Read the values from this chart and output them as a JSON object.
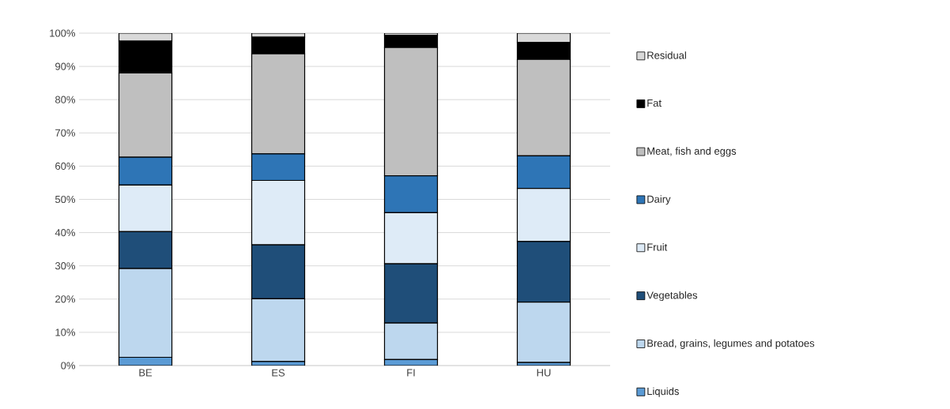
{
  "chart_data": {
    "type": "bar",
    "stacked": true,
    "categories": [
      "BE",
      "ES",
      "FI",
      "HU"
    ],
    "series": [
      {
        "name": "Liquids",
        "color": "#5b9bd5",
        "values": [
          2.5,
          1.2,
          1.8,
          0.9
        ]
      },
      {
        "name": "Bread, grains, legumes and potatoes",
        "color": "#bdd7ee",
        "values": [
          26.7,
          18.9,
          11.0,
          18.2
        ]
      },
      {
        "name": "Vegetables",
        "color": "#1f4e79",
        "values": [
          11.1,
          16.2,
          17.8,
          18.2
        ]
      },
      {
        "name": "Fruit",
        "color": "#deebf7",
        "values": [
          14.0,
          19.4,
          15.4,
          16.0
        ]
      },
      {
        "name": "Dairy",
        "color": "#2e75b6",
        "values": [
          8.4,
          8.0,
          11.1,
          9.8
        ]
      },
      {
        "name": "Meat, fish and eggs",
        "color": "#bfbfbf",
        "values": [
          25.3,
          30.1,
          38.6,
          29.0
        ]
      },
      {
        "name": "Fat",
        "color": "#000000",
        "values": [
          9.6,
          5.0,
          3.6,
          5.1
        ]
      },
      {
        "name": "Residual",
        "color": "#d9d9d9",
        "values": [
          2.4,
          1.2,
          0.7,
          2.8
        ]
      }
    ],
    "ylim": [
      0,
      100
    ],
    "yticks": [
      {
        "value": 0,
        "label": "0%"
      },
      {
        "value": 10,
        "label": "10%"
      },
      {
        "value": 20,
        "label": "20%"
      },
      {
        "value": 30,
        "label": "30%"
      },
      {
        "value": 40,
        "label": "40%"
      },
      {
        "value": 50,
        "label": "50%"
      },
      {
        "value": 60,
        "label": "60%"
      },
      {
        "value": 70,
        "label": "70%"
      },
      {
        "value": 80,
        "label": "80%"
      },
      {
        "value": 90,
        "label": "90%"
      },
      {
        "value": 100,
        "label": "100%"
      }
    ],
    "grid": "y",
    "legend": "right"
  }
}
